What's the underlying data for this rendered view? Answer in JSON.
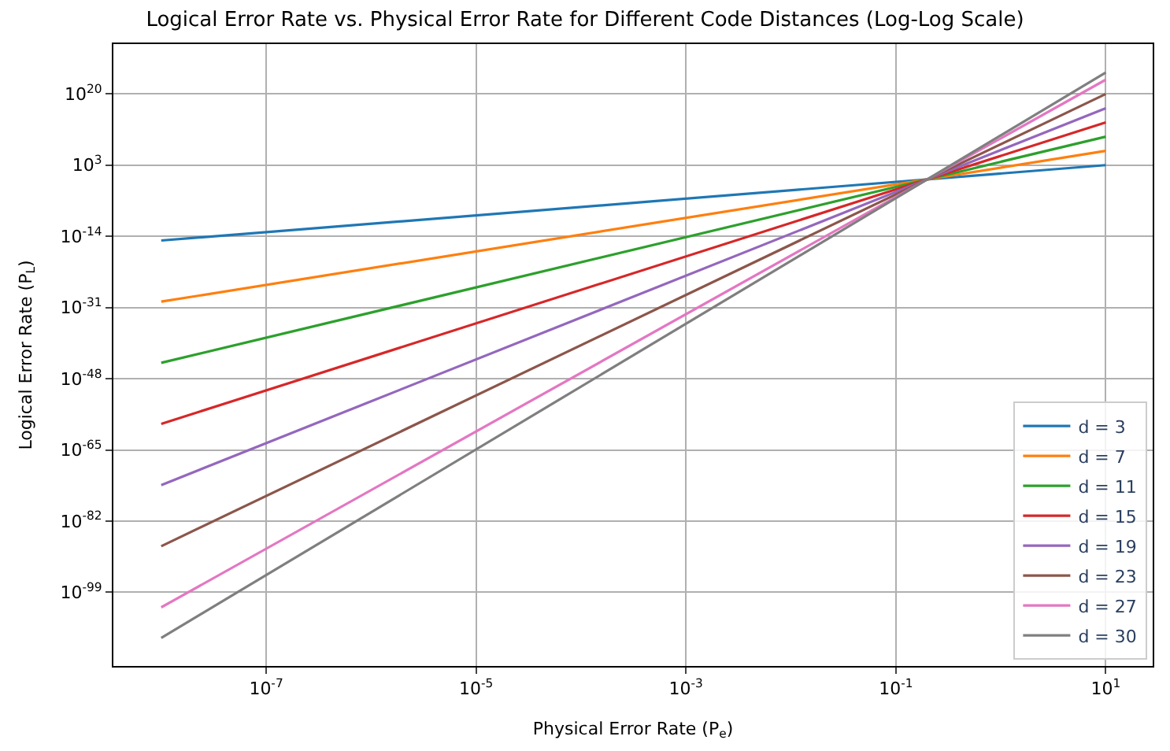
{
  "chart_data": {
    "type": "line",
    "title": "Logical Error Rate vs. Physical Error Rate for Different Code Distances (Log-Log Scale)",
    "xlabel": "Physical Error Rate (P$_{e}$)",
    "ylabel": "Logical Error Rate (P$_{L}$)",
    "x": [
      1e-08,
      10
    ],
    "series": [
      {
        "name": "d = 3",
        "color": "#1f77b4",
        "values": [
          1e-15,
          1000.0
        ]
      },
      {
        "name": "d = 7",
        "color": "#ff7f0e",
        "values": [
          2.5e-30,
          2500000.0
        ]
      },
      {
        "name": "d = 11",
        "color": "#2ca02c",
        "values": [
          6.3e-45,
          6300000000.0
        ]
      },
      {
        "name": "d = 15",
        "color": "#d62728",
        "values": [
          1.6e-59,
          16000000000000.0
        ]
      },
      {
        "name": "d = 19",
        "color": "#9467bd",
        "values": [
          4e-74,
          4e+16
        ]
      },
      {
        "name": "d = 23",
        "color": "#8c564b",
        "values": [
          1e-88,
          1e+20
        ]
      },
      {
        "name": "d = 27",
        "color": "#e377c2",
        "values": [
          2.5e-103,
          2.5e+23
        ]
      },
      {
        "name": "d = 30",
        "color": "#7f7f7f",
        "values": [
          1.3e-110,
          1.3e+25
        ]
      }
    ],
    "log": "xy",
    "xlim": [
      3.5e-09,
      28
    ],
    "ylim": [
      2.5e-117,
      8e+31
    ],
    "xticks": [
      {
        "value": 1e-07,
        "label": "10$^{-7}$"
      },
      {
        "value": 1e-05,
        "label": "10$^{-5}$"
      },
      {
        "value": 0.001,
        "label": "10$^{-3}$"
      },
      {
        "value": 0.1,
        "label": "10$^{-1}$"
      },
      {
        "value": 10,
        "label": "10$^{1}$"
      }
    ],
    "yticks": [
      {
        "value": 1e-99,
        "label": "10$^{-99}$"
      },
      {
        "value": 1e-82,
        "label": "10$^{-82}$"
      },
      {
        "value": 1e-65,
        "label": "10$^{-65}$"
      },
      {
        "value": 1e-48,
        "label": "10$^{-48}$"
      },
      {
        "value": 1e-31,
        "label": "10$^{-31}$"
      },
      {
        "value": 1e-14,
        "label": "10$^{-14}$"
      },
      {
        "value": 1000.0,
        "label": "10$^{3}$"
      },
      {
        "value": 1e+20,
        "label": "10$^{20}$"
      }
    ],
    "grid": true,
    "legend": "bottom right",
    "marker": "none",
    "line_style": "solid"
  }
}
